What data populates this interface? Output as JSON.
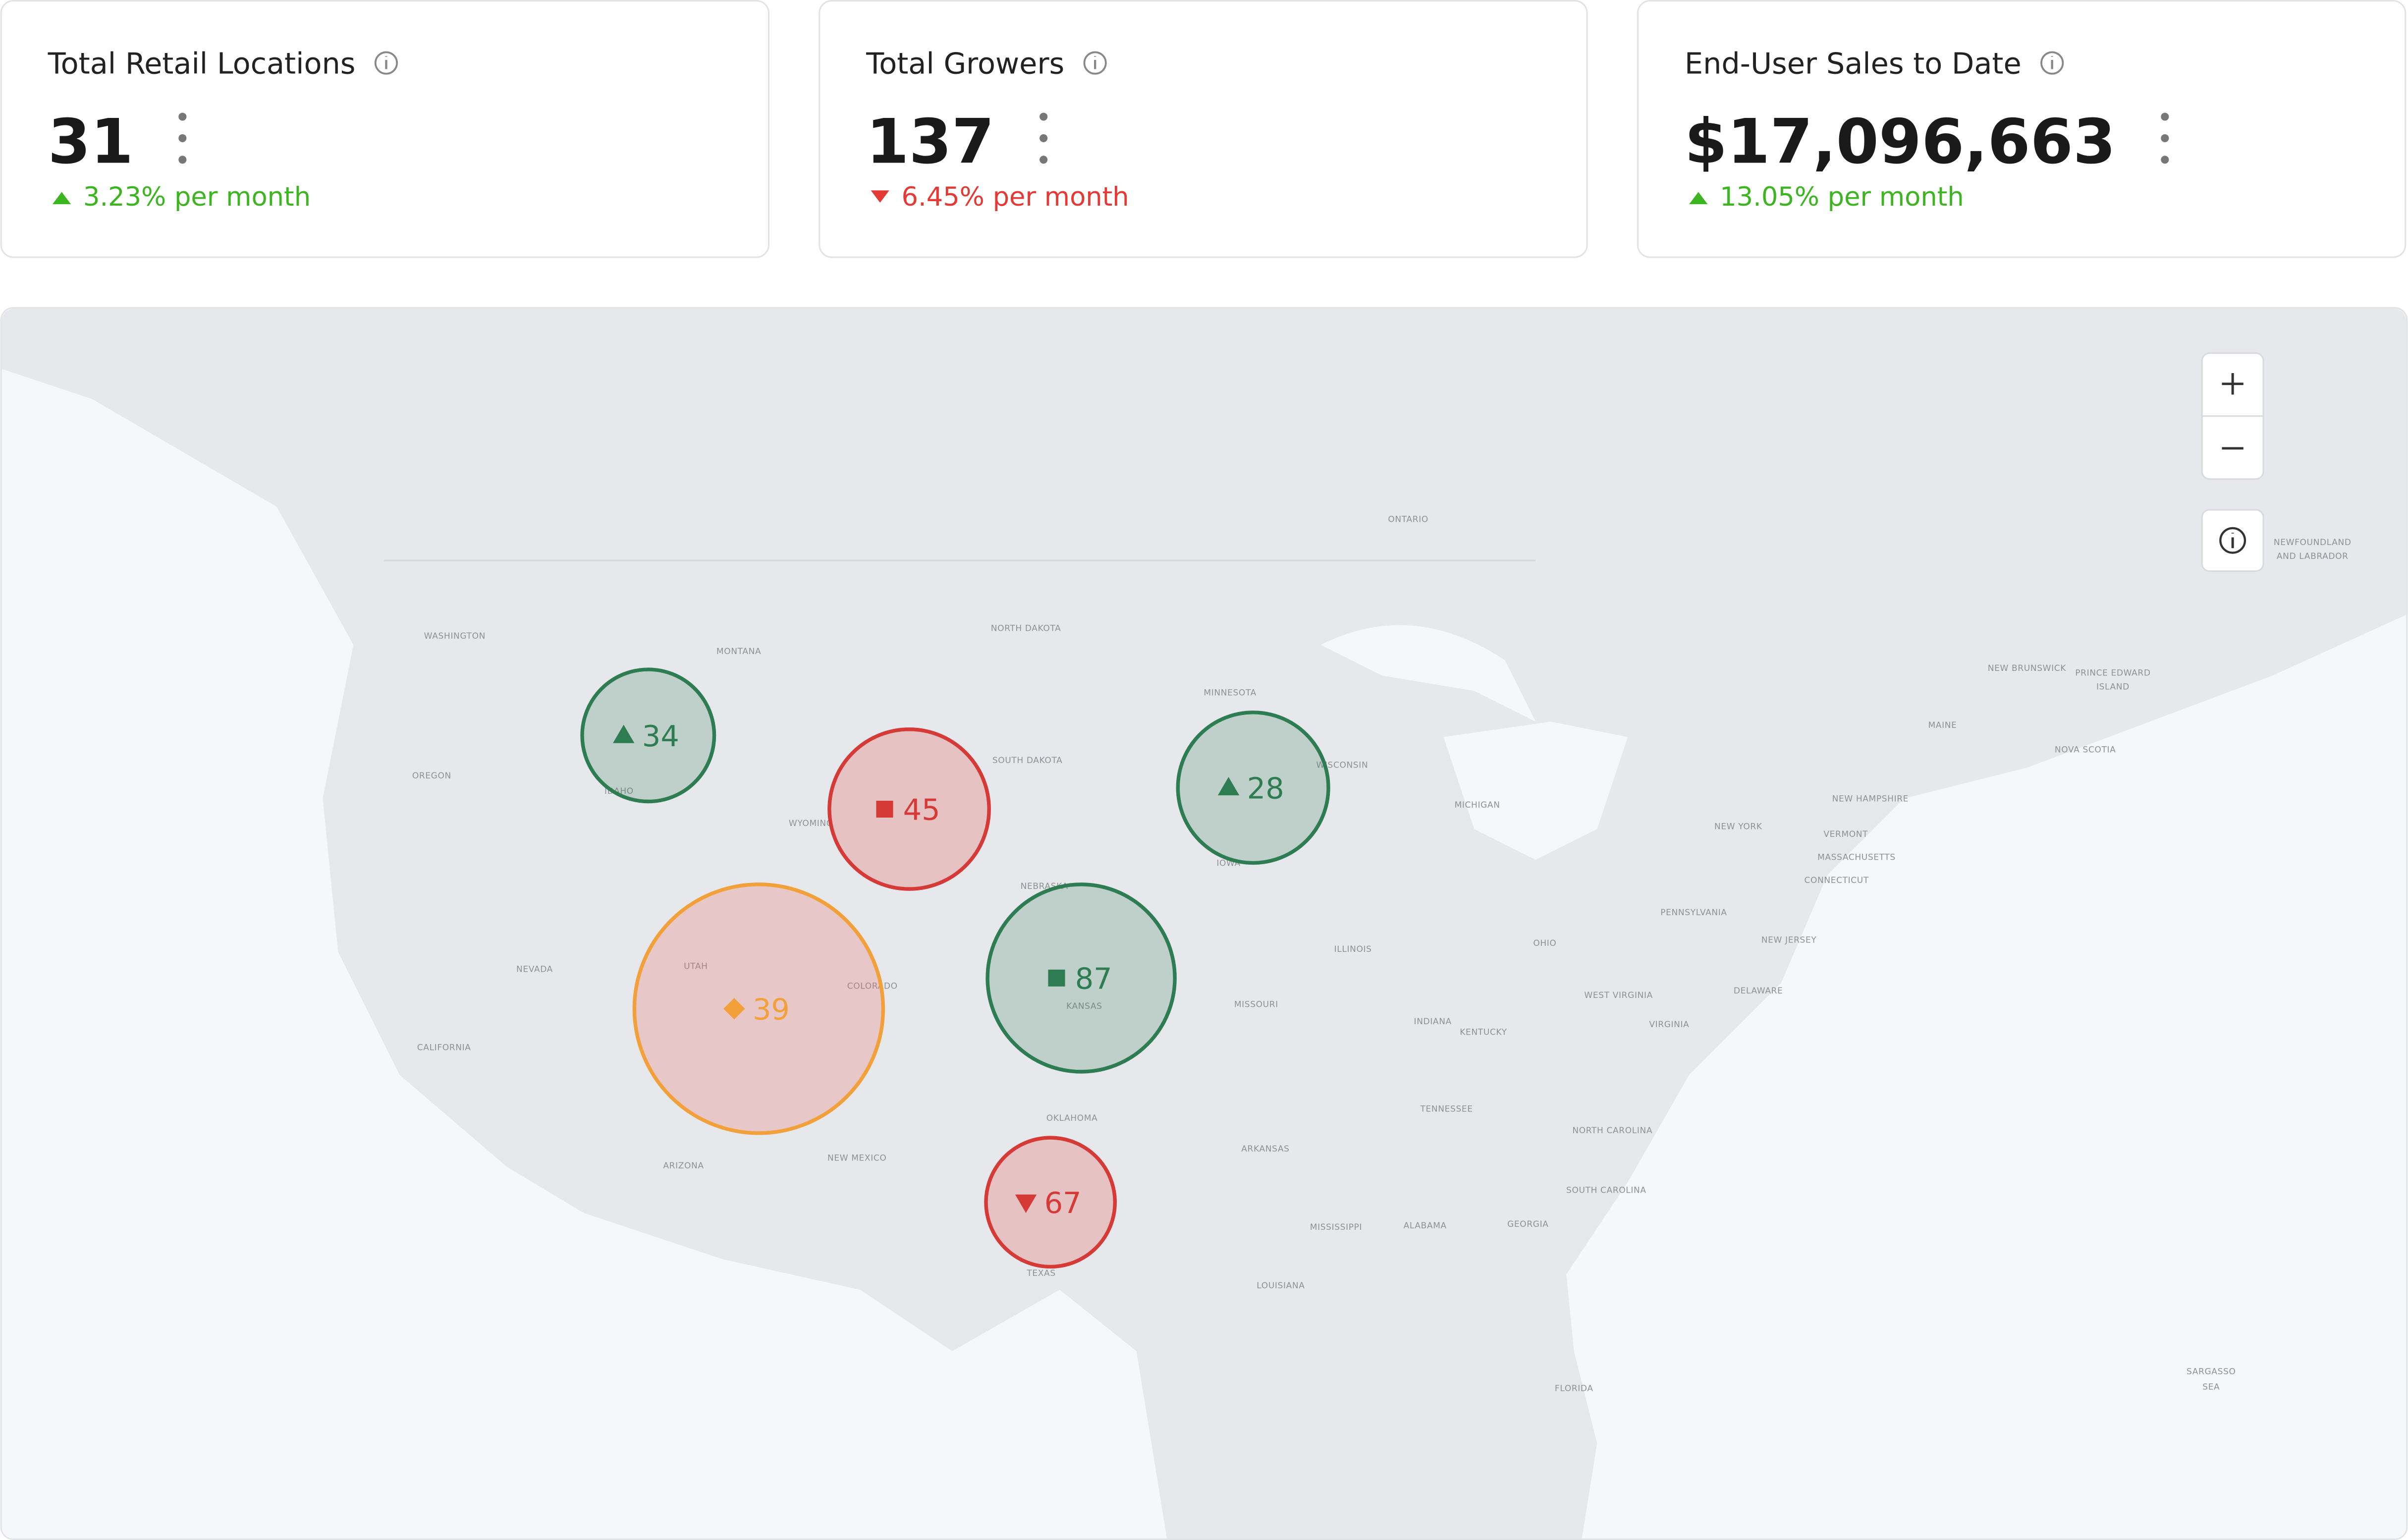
{
  "cards": [
    {
      "title": "Total Retail Locations",
      "value": "31",
      "change": "3.23% per month",
      "direction": "up"
    },
    {
      "title": "Total Growers",
      "value": "137",
      "change": "6.45% per month",
      "direction": "down"
    },
    {
      "title": "End-User Sales to Date",
      "value": "$17,096,663",
      "change": "13.05% per month",
      "direction": "up"
    }
  ],
  "map": {
    "labels": [
      "ONTARIO",
      "NEWFOUNDLAND",
      "AND LABRADOR",
      "WASHINGTON",
      "MONTANA",
      "NORTH DAKOTA",
      "MINNESOTA",
      "OREGON",
      "IDAHO",
      "SOUTH DAKOTA",
      "WISCONSIN",
      "WYOMING",
      "MICHIGAN",
      "NEW YORK",
      "NEBRASKA",
      "IOWA",
      "NEVADA",
      "UTAH",
      "COLORADO",
      "KANSAS",
      "ILLINOIS",
      "OHIO",
      "PENNSYLVANIA",
      "MISSOURI",
      "INDIANA",
      "KENTUCKY",
      "WEST VIRGINIA",
      "VIRGINIA",
      "CALIFORNIA",
      "TENNESSEE",
      "NORTH CAROLINA",
      "OKLAHOMA",
      "ARKANSAS",
      "ARIZONA",
      "NEW MEXICO",
      "SOUTH CAROLINA",
      "MISSISSIPPI",
      "ALABAMA",
      "GEORGIA",
      "TEXAS",
      "LOUISIANA",
      "FLORIDA",
      "SARGASSO",
      "SEA",
      "MAINE",
      "NEW BRUNSWICK",
      "PRINCE EDWARD",
      "ISLAND",
      "NOVA SCOTIA",
      "NEW HAMPSHIRE",
      "VERMONT",
      "MASSACHUSETTS",
      "CONNECTICUT",
      "NEW JERSEY",
      "DELAWARE"
    ],
    "markers": [
      {
        "value": 34,
        "icon": "triangle-up",
        "color": "green"
      },
      {
        "value": 45,
        "icon": "square",
        "color": "red"
      },
      {
        "value": 28,
        "icon": "triangle-up",
        "color": "green"
      },
      {
        "value": 39,
        "icon": "diamond",
        "color": "orange"
      },
      {
        "value": 87,
        "icon": "square",
        "color": "green"
      },
      {
        "value": 67,
        "icon": "triangle-down",
        "color": "red"
      }
    ]
  }
}
